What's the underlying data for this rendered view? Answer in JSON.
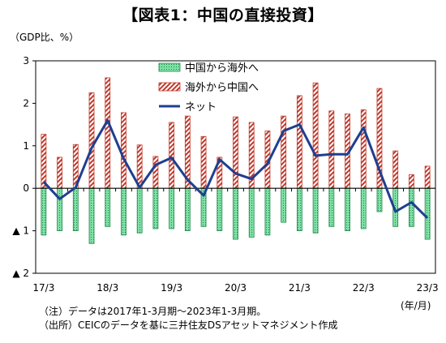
{
  "title": "【図表1：中国の直接投資】",
  "y_unit_label": "（GDP比、%）",
  "x_unit_label": "(年/月)",
  "notes": [
    "（注）データは2017年1-3月期～2023年1-3月期。",
    "（出所）CEICのデータを基に三井住友DSアセットマネジメント作成"
  ],
  "colors": {
    "outward_fill": "#7ee0a4",
    "outward_dot": "#1a8a4a",
    "inward_stripe": "#c0392b",
    "net_line": "#1f3f8f",
    "zero_line": "#000000",
    "frame": "#000000"
  },
  "chart_data": {
    "type": "bar",
    "title": "【図表1：中国の直接投資】",
    "xlabel": "(年/月)",
    "ylabel": "（GDP比、%）",
    "ylim": [
      -2,
      3
    ],
    "yticks": [
      {
        "value": 3,
        "label": "3"
      },
      {
        "value": 2,
        "label": "2"
      },
      {
        "value": 1,
        "label": "1"
      },
      {
        "value": 0,
        "label": "0"
      },
      {
        "value": -1,
        "label": "▲ 1"
      },
      {
        "value": -2,
        "label": "▲ 2"
      }
    ],
    "x_tick_labels": [
      {
        "index": 0,
        "label": "17/3"
      },
      {
        "index": 4,
        "label": "18/3"
      },
      {
        "index": 8,
        "label": "19/3"
      },
      {
        "index": 12,
        "label": "20/3"
      },
      {
        "index": 16,
        "label": "21/3"
      },
      {
        "index": 20,
        "label": "22/3"
      },
      {
        "index": 24,
        "label": "23/3"
      }
    ],
    "categories": [
      "17/3",
      "17/6",
      "17/9",
      "17/12",
      "18/3",
      "18/6",
      "18/9",
      "18/12",
      "19/3",
      "19/6",
      "19/9",
      "19/12",
      "20/3",
      "20/6",
      "20/9",
      "20/12",
      "21/3",
      "21/6",
      "21/9",
      "21/12",
      "22/3",
      "22/6",
      "22/9",
      "22/12",
      "23/3"
    ],
    "legend_position": "top-center",
    "grid": false,
    "series": [
      {
        "name": "中国から海外へ",
        "kind": "bar",
        "values": [
          -1.1,
          -1.0,
          -1.0,
          -1.3,
          -0.9,
          -1.1,
          -1.05,
          -0.95,
          -0.95,
          -1.0,
          -0.9,
          -1.0,
          -1.2,
          -1.15,
          -1.1,
          -0.8,
          -1.0,
          -1.05,
          -0.9,
          -1.0,
          -0.95,
          -0.55,
          -0.9,
          -0.9,
          -1.2
        ]
      },
      {
        "name": "海外から中国へ",
        "kind": "bar",
        "values": [
          1.27,
          0.73,
          1.03,
          2.25,
          2.6,
          1.78,
          1.02,
          0.75,
          1.55,
          1.7,
          1.22,
          0.73,
          1.68,
          1.55,
          1.35,
          1.7,
          2.18,
          2.48,
          1.82,
          1.75,
          1.85,
          2.35,
          0.88,
          0.32,
          0.52
        ]
      },
      {
        "name": "ネット",
        "kind": "line",
        "values": [
          0.15,
          -0.25,
          0.02,
          0.95,
          1.6,
          0.7,
          0.02,
          0.55,
          0.72,
          0.2,
          -0.17,
          0.68,
          0.35,
          0.22,
          0.58,
          1.35,
          1.5,
          0.77,
          0.8,
          0.8,
          1.43,
          0.42,
          -0.55,
          -0.33,
          -0.7
        ]
      }
    ]
  }
}
